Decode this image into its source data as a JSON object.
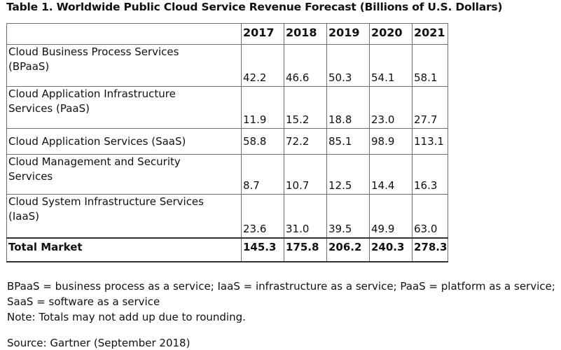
{
  "title": "Table 1. Worldwide Public Cloud Service Revenue Forecast (Billions of U.S. Dollars)",
  "table": {
    "columns": [
      "",
      "2017",
      "2018",
      "2019",
      "2020",
      "2021"
    ],
    "rows": [
      {
        "label_line1": "Cloud Business Process Services",
        "label_line2": "(BPaaS)",
        "values": [
          "42.2",
          "46.6",
          "50.3",
          "54.1",
          "58.1"
        ]
      },
      {
        "label_line1": "Cloud Application Infrastructure",
        "label_line2": "Services (PaaS)",
        "values": [
          "11.9",
          "15.2",
          "18.8",
          "23.0",
          "27.7"
        ]
      },
      {
        "label_line1": "Cloud Application Services (SaaS)",
        "label_line2": "",
        "values": [
          "58.8",
          "72.2",
          "85.1",
          "98.9",
          "113.1"
        ]
      },
      {
        "label_line1": "Cloud Management and Security",
        "label_line2": "Services",
        "values": [
          "8.7",
          "10.7",
          "12.5",
          "14.4",
          "16.3"
        ]
      },
      {
        "label_line1": "Cloud System Infrastructure Services",
        "label_line2": "(IaaS)",
        "values": [
          "23.6",
          "31.0",
          "39.5",
          "49.9",
          "63.0"
        ]
      }
    ],
    "total": {
      "label": "Total Market",
      "values": [
        "145.3",
        "175.8",
        "206.2",
        "240.3",
        "278.3"
      ]
    }
  },
  "notes": {
    "abbreviations": "BPaaS = business process as a service; IaaS = infrastructure as a service; PaaS = platform as a service; SaaS = software as a service",
    "rounding": "Note: Totals may not add up due to rounding."
  },
  "source": "Source: Gartner (September 2018)"
}
